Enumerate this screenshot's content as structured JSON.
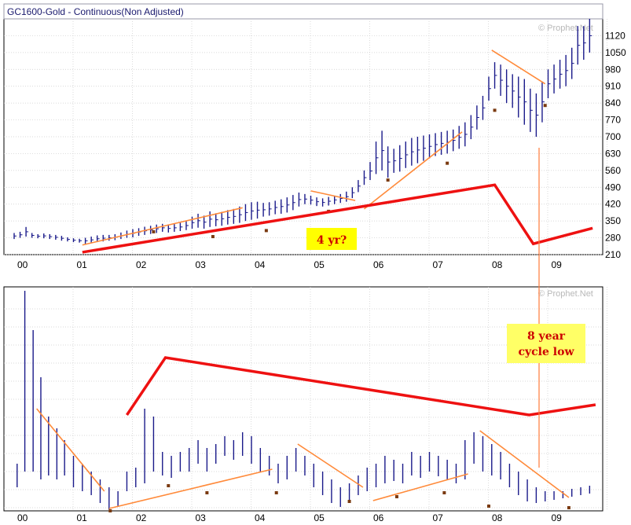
{
  "chart_data": [
    {
      "type": "bar",
      "title": "GC1600-Gold - Continuous(Non Adjusted)",
      "watermark": "© Prophet.Net",
      "ylim": [
        210,
        1190
      ],
      "yticks": [
        "1120",
        "1050",
        "980",
        "910",
        "840",
        "770",
        "700",
        "630",
        "560",
        "490",
        "420",
        "350",
        "280",
        "210"
      ],
      "xticks": [
        "00",
        "01",
        "02",
        "03",
        "04",
        "05",
        "06",
        "07",
        "08",
        "09"
      ],
      "annotation": "4 yr?",
      "annotation_bg": "#ffff00",
      "bar_color": "#1a1a8a",
      "price_bars": [
        [
          0.0,
          275,
          300
        ],
        [
          0.1,
          280,
          305
        ],
        [
          0.2,
          285,
          325
        ],
        [
          0.3,
          280,
          300
        ],
        [
          0.4,
          278,
          295
        ],
        [
          0.5,
          278,
          298
        ],
        [
          0.6,
          275,
          295
        ],
        [
          0.7,
          272,
          292
        ],
        [
          0.8,
          268,
          288
        ],
        [
          0.9,
          265,
          282
        ],
        [
          1.0,
          262,
          278
        ],
        [
          1.1,
          260,
          276
        ],
        [
          1.2,
          255,
          280
        ],
        [
          1.3,
          258,
          285
        ],
        [
          1.4,
          262,
          290
        ],
        [
          1.5,
          265,
          292
        ],
        [
          1.6,
          268,
          292
        ],
        [
          1.7,
          270,
          295
        ],
        [
          1.8,
          275,
          302
        ],
        [
          1.9,
          280,
          310
        ],
        [
          2.0,
          282,
          316
        ],
        [
          2.1,
          288,
          320
        ],
        [
          2.2,
          292,
          326
        ],
        [
          2.3,
          296,
          330
        ],
        [
          2.4,
          300,
          335
        ],
        [
          2.5,
          305,
          338
        ],
        [
          2.6,
          302,
          336
        ],
        [
          2.7,
          305,
          338
        ],
        [
          2.8,
          308,
          342
        ],
        [
          2.9,
          312,
          350
        ],
        [
          3.0,
          318,
          368
        ],
        [
          3.1,
          322,
          380
        ],
        [
          3.2,
          318,
          372
        ],
        [
          3.3,
          325,
          390
        ],
        [
          3.4,
          328,
          382
        ],
        [
          3.5,
          330,
          388
        ],
        [
          3.6,
          335,
          395
        ],
        [
          3.7,
          338,
          400
        ],
        [
          3.8,
          342,
          410
        ],
        [
          3.9,
          350,
          420
        ],
        [
          4.0,
          355,
          428
        ],
        [
          4.1,
          360,
          430
        ],
        [
          4.2,
          368,
          425
        ],
        [
          4.3,
          372,
          428
        ],
        [
          4.4,
          378,
          434
        ],
        [
          4.5,
          380,
          440
        ],
        [
          4.6,
          385,
          448
        ],
        [
          4.7,
          395,
          458
        ],
        [
          4.8,
          410,
          468
        ],
        [
          4.9,
          420,
          462
        ],
        [
          5.0,
          418,
          455
        ],
        [
          5.1,
          412,
          448
        ],
        [
          5.2,
          410,
          444
        ],
        [
          5.3,
          414,
          450
        ],
        [
          5.4,
          420,
          455
        ],
        [
          5.5,
          425,
          462
        ],
        [
          5.6,
          430,
          472
        ],
        [
          5.7,
          445,
          490
        ],
        [
          5.8,
          470,
          520
        ],
        [
          5.9,
          500,
          560
        ],
        [
          6.0,
          520,
          595
        ],
        [
          6.1,
          545,
          680
        ],
        [
          6.2,
          560,
          725
        ],
        [
          6.3,
          530,
          660
        ],
        [
          6.4,
          550,
          650
        ],
        [
          6.5,
          555,
          665
        ],
        [
          6.6,
          570,
          680
        ],
        [
          6.7,
          580,
          695
        ],
        [
          6.8,
          590,
          700
        ],
        [
          6.9,
          600,
          705
        ],
        [
          7.0,
          610,
          710
        ],
        [
          7.1,
          620,
          715
        ],
        [
          7.2,
          625,
          720
        ],
        [
          7.3,
          630,
          725
        ],
        [
          7.4,
          640,
          730
        ],
        [
          7.5,
          650,
          745
        ],
        [
          7.6,
          660,
          760
        ],
        [
          7.7,
          690,
          790
        ],
        [
          7.8,
          730,
          830
        ],
        [
          7.9,
          770,
          870
        ],
        [
          8.0,
          850,
          950
        ],
        [
          8.1,
          900,
          1010
        ],
        [
          8.2,
          870,
          1000
        ],
        [
          8.3,
          840,
          980
        ],
        [
          8.4,
          820,
          960
        ],
        [
          8.5,
          780,
          950
        ],
        [
          8.6,
          750,
          940
        ],
        [
          8.7,
          720,
          900
        ],
        [
          8.8,
          700,
          880
        ],
        [
          8.9,
          760,
          930
        ],
        [
          9.0,
          860,
          980
        ],
        [
          9.1,
          880,
          1000
        ],
        [
          9.2,
          900,
          1020
        ],
        [
          9.3,
          910,
          1040
        ],
        [
          9.4,
          940,
          1070
        ],
        [
          9.5,
          1000,
          1160
        ],
        [
          9.6,
          1020,
          1160
        ],
        [
          9.7,
          1050,
          1190
        ]
      ],
      "marker_color": "#7a3a10",
      "markers": [
        [
          2.35,
          305
        ],
        [
          3.35,
          285
        ],
        [
          4.25,
          310
        ],
        [
          5.3,
          390
        ],
        [
          6.3,
          520
        ],
        [
          7.3,
          590
        ],
        [
          8.1,
          810
        ],
        [
          8.95,
          830
        ]
      ],
      "trendlines_orange": [
        [
          [
            1.15,
            250
          ],
          [
            3.85,
            405
          ]
        ],
        [
          [
            5.0,
            475
          ],
          [
            5.75,
            435
          ]
        ],
        [
          [
            5.9,
            400
          ],
          [
            7.55,
            720
          ]
        ],
        [
          [
            8.05,
            1060
          ],
          [
            8.95,
            920
          ]
        ]
      ],
      "trendline_red": [
        [
          1.15,
          220
        ],
        [
          8.1,
          500
        ],
        [
          8.75,
          255
        ],
        [
          9.75,
          320
        ]
      ],
      "markers_legend": ""
    },
    {
      "type": "bar",
      "title": "",
      "watermark": "© Prophet.Net",
      "xticks": [
        "00",
        "01",
        "02",
        "03",
        "04",
        "05",
        "06",
        "07",
        "08",
        "09"
      ],
      "annotation": "8 year\ncycle low",
      "annotation_bg": "#ffff66",
      "bar_color": "#1a1a8a",
      "osc_bars": [
        [
          0.05,
          590,
          620
        ],
        [
          0.18,
          370,
          600
        ],
        [
          0.32,
          420,
          600
        ],
        [
          0.45,
          480,
          610
        ],
        [
          0.58,
          530,
          605
        ],
        [
          0.72,
          545,
          610
        ],
        [
          0.85,
          560,
          605
        ],
        [
          1.0,
          580,
          620
        ],
        [
          1.15,
          590,
          625
        ],
        [
          1.3,
          600,
          630
        ],
        [
          1.45,
          610,
          640
        ],
        [
          1.6,
          620,
          648
        ],
        [
          1.75,
          625,
          645
        ],
        [
          1.9,
          600,
          625
        ],
        [
          2.05,
          595,
          620
        ],
        [
          2.2,
          520,
          615
        ],
        [
          2.35,
          530,
          600
        ],
        [
          2.5,
          575,
          605
        ],
        [
          2.65,
          580,
          608
        ],
        [
          2.8,
          575,
          600
        ],
        [
          2.95,
          570,
          600
        ],
        [
          3.1,
          560,
          590
        ],
        [
          3.25,
          570,
          600
        ],
        [
          3.4,
          565,
          590
        ],
        [
          3.55,
          555,
          580
        ],
        [
          3.7,
          560,
          585
        ],
        [
          3.85,
          550,
          580
        ],
        [
          4.0,
          555,
          590
        ],
        [
          4.15,
          570,
          600
        ],
        [
          4.3,
          580,
          605
        ],
        [
          4.45,
          590,
          615
        ],
        [
          4.6,
          580,
          610
        ],
        [
          4.75,
          570,
          600
        ],
        [
          4.9,
          580,
          605
        ],
        [
          5.05,
          590,
          620
        ],
        [
          5.2,
          600,
          630
        ],
        [
          5.35,
          610,
          640
        ],
        [
          5.5,
          620,
          645
        ],
        [
          5.65,
          615,
          640
        ],
        [
          5.8,
          605,
          630
        ],
        [
          5.95,
          595,
          625
        ],
        [
          6.1,
          590,
          620
        ],
        [
          6.25,
          580,
          615
        ],
        [
          6.4,
          585,
          612
        ],
        [
          6.55,
          590,
          615
        ],
        [
          6.7,
          575,
          605
        ],
        [
          6.85,
          580,
          608
        ],
        [
          7.0,
          575,
          600
        ],
        [
          7.15,
          580,
          606
        ],
        [
          7.3,
          585,
          610
        ],
        [
          7.45,
          590,
          615
        ],
        [
          7.6,
          560,
          610
        ],
        [
          7.75,
          550,
          590
        ],
        [
          7.9,
          555,
          600
        ],
        [
          8.05,
          565,
          605
        ],
        [
          8.2,
          575,
          610
        ],
        [
          8.35,
          590,
          620
        ],
        [
          8.5,
          600,
          630
        ],
        [
          8.65,
          610,
          638
        ],
        [
          8.8,
          620,
          640
        ],
        [
          8.95,
          625,
          638
        ],
        [
          9.1,
          625,
          636
        ],
        [
          9.25,
          625,
          634
        ],
        [
          9.4,
          622,
          632
        ],
        [
          9.55,
          620,
          630
        ],
        [
          9.7,
          618,
          628
        ]
      ],
      "marker_color": "#7a3a10",
      "osc_markers": [
        [
          1.62,
          650
        ],
        [
          2.6,
          618
        ],
        [
          3.25,
          627
        ],
        [
          4.42,
          627
        ],
        [
          5.65,
          638
        ],
        [
          6.45,
          632
        ],
        [
          7.25,
          627
        ],
        [
          8.0,
          644
        ],
        [
          9.35,
          646
        ]
      ],
      "osc_trendlines_orange": [
        [
          [
            0.38,
            520
          ],
          [
            1.52,
            625
          ]
        ],
        [
          [
            1.6,
            647
          ],
          [
            4.35,
            597
          ]
        ],
        [
          [
            4.78,
            565
          ],
          [
            5.88,
            620
          ]
        ],
        [
          [
            6.05,
            637
          ],
          [
            7.65,
            603
          ]
        ],
        [
          [
            7.85,
            548
          ],
          [
            9.35,
            633
          ]
        ]
      ],
      "osc_trendline_red": [
        [
          1.9,
          528
        ],
        [
          2.55,
          455
        ],
        [
          8.68,
          528
        ],
        [
          9.8,
          515
        ]
      ]
    }
  ]
}
